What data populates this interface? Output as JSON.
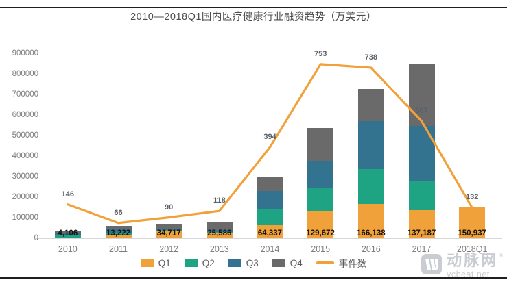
{
  "page": {
    "title": "2010—2018Q1国内医疗健康行业融资趋势（万美元）"
  },
  "watermark": {
    "brand": "动脉网",
    "domain": "vcbeat.net",
    "registered_mark": "®"
  },
  "colors": {
    "q1_orange": "#F0A139",
    "q2_green": "#1EA383",
    "q3_blue": "#33738F",
    "q4_gray": "#6A6A6A",
    "line_orange": "#F0A139",
    "axis_text": "#7D7D7D",
    "frame": "#1F1F1F",
    "watermark_gray": "#C9CDD1"
  },
  "chart_data": {
    "type": "bar",
    "subtype": "stacked-bar-with-line",
    "title": "2010—2018Q1国内医疗健康行业融资趋势（万美元）",
    "unit": "万美元",
    "categories": [
      "2010",
      "2011",
      "2012",
      "2013",
      "2014",
      "2015",
      "2016",
      "2017",
      "2018Q1"
    ],
    "series": [
      {
        "name": "Q1",
        "type": "bar",
        "color": "#F0A139",
        "values": [
          4106,
          13222,
          34717,
          25586,
          64337,
          129672,
          166138,
          137187,
          150937
        ]
      },
      {
        "name": "Q2",
        "type": "bar",
        "color": "#1EA383",
        "values": [
          8000,
          11000,
          4000,
          5000,
          77000,
          114000,
          172000,
          141000,
          0
        ]
      },
      {
        "name": "Q3",
        "type": "bar",
        "color": "#33738F",
        "values": [
          13000,
          23000,
          8000,
          10000,
          89000,
          133000,
          233000,
          270000,
          0
        ]
      },
      {
        "name": "Q4",
        "type": "bar",
        "color": "#6A6A6A",
        "values": [
          10000,
          14000,
          24000,
          38000,
          66000,
          161000,
          155000,
          297000,
          0
        ]
      },
      {
        "name": "事件数",
        "type": "line",
        "color": "#F0A139",
        "axis": "secondary",
        "values": [
          146,
          66,
          90,
          118,
          394,
          753,
          738,
          507,
          132
        ]
      }
    ],
    "bar_value_labels": [
      "4,106",
      "13,222",
      "34,717",
      "25,586",
      "64,337",
      "129,672",
      "166,138",
      "137,187",
      "150,937"
    ],
    "line_value_labels": [
      "146",
      "66",
      "90",
      "118",
      "394",
      "753",
      "738",
      "507",
      "132"
    ],
    "y_axis": {
      "min": 0,
      "max": 900000,
      "tick_step": 100000,
      "ticks": [
        "0",
        "100000",
        "200000",
        "300000",
        "400000",
        "500000",
        "600000",
        "700000",
        "800000",
        "900000"
      ]
    },
    "secondary_axis": {
      "min": 0,
      "max": 800,
      "visible": false
    },
    "legend": [
      "Q1",
      "Q2",
      "Q3",
      "Q4",
      "事件数"
    ],
    "legend_position": "bottom",
    "grid": false
  }
}
